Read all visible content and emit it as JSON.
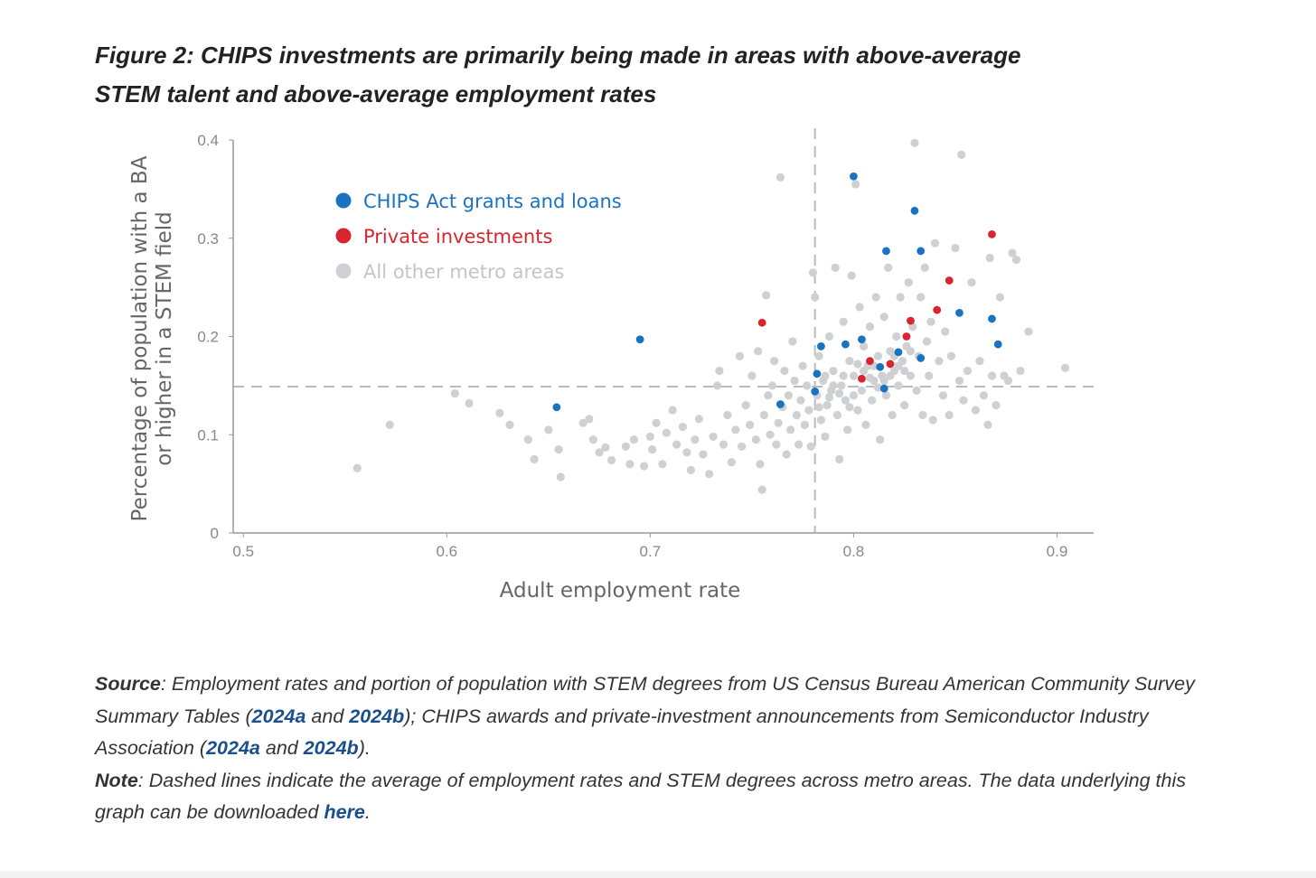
{
  "title_lines": [
    "Figure 2: CHIPS investments are primarily being made in areas with above-average",
    "STEM talent and above-average employment rates"
  ],
  "chart_data": {
    "type": "scatter",
    "title": "Figure 2: CHIPS investments are primarily being made in areas with above-average STEM talent and above-average employment rates",
    "xlabel": "Adult employment rate",
    "ylabel_lines": [
      "Percentage of population with a BA",
      "or higher in a STEM field"
    ],
    "xlim": [
      0.495,
      0.918
    ],
    "ylim": [
      0,
      0.4
    ],
    "x_ticks": [
      "0.5",
      "0.6",
      "0.7",
      "0.8",
      "0.9"
    ],
    "x_tick_values": [
      0.5,
      0.6,
      0.7,
      0.8,
      0.9
    ],
    "y_ticks": [
      "0",
      "0.1",
      "0.2",
      "0.3",
      "0.4"
    ],
    "y_tick_values": [
      0,
      0.1,
      0.2,
      0.3,
      0.4
    ],
    "grid": false,
    "legend_position": "top-left",
    "reference_lines": {
      "x_mean": 0.781,
      "y_mean": 0.149,
      "style": "dashed"
    },
    "series": [
      {
        "name": "All other metro areas",
        "color": "#cfd0d4",
        "points": [
          [
            0.556,
            0.066
          ],
          [
            0.572,
            0.11
          ],
          [
            0.604,
            0.142
          ],
          [
            0.611,
            0.132
          ],
          [
            0.626,
            0.122
          ],
          [
            0.631,
            0.11
          ],
          [
            0.64,
            0.095
          ],
          [
            0.643,
            0.075
          ],
          [
            0.65,
            0.105
          ],
          [
            0.655,
            0.085
          ],
          [
            0.656,
            0.057
          ],
          [
            0.667,
            0.112
          ],
          [
            0.67,
            0.116
          ],
          [
            0.672,
            0.095
          ],
          [
            0.675,
            0.082
          ],
          [
            0.678,
            0.087
          ],
          [
            0.681,
            0.074
          ],
          [
            0.688,
            0.088
          ],
          [
            0.69,
            0.07
          ],
          [
            0.692,
            0.095
          ],
          [
            0.697,
            0.068
          ],
          [
            0.7,
            0.098
          ],
          [
            0.701,
            0.085
          ],
          [
            0.703,
            0.112
          ],
          [
            0.706,
            0.07
          ],
          [
            0.708,
            0.102
          ],
          [
            0.711,
            0.125
          ],
          [
            0.713,
            0.09
          ],
          [
            0.716,
            0.108
          ],
          [
            0.718,
            0.082
          ],
          [
            0.72,
            0.064
          ],
          [
            0.722,
            0.095
          ],
          [
            0.724,
            0.116
          ],
          [
            0.726,
            0.08
          ],
          [
            0.729,
            0.06
          ],
          [
            0.731,
            0.098
          ],
          [
            0.733,
            0.15
          ],
          [
            0.734,
            0.165
          ],
          [
            0.736,
            0.09
          ],
          [
            0.738,
            0.12
          ],
          [
            0.74,
            0.072
          ],
          [
            0.742,
            0.105
          ],
          [
            0.744,
            0.18
          ],
          [
            0.745,
            0.088
          ],
          [
            0.747,
            0.13
          ],
          [
            0.749,
            0.11
          ],
          [
            0.75,
            0.16
          ],
          [
            0.752,
            0.095
          ],
          [
            0.753,
            0.185
          ],
          [
            0.754,
            0.07
          ],
          [
            0.755,
            0.044
          ],
          [
            0.756,
            0.12
          ],
          [
            0.757,
            0.242
          ],
          [
            0.758,
            0.14
          ],
          [
            0.759,
            0.1
          ],
          [
            0.76,
            0.15
          ],
          [
            0.761,
            0.175
          ],
          [
            0.762,
            0.09
          ],
          [
            0.763,
            0.112
          ],
          [
            0.764,
            0.362
          ],
          [
            0.765,
            0.128
          ],
          [
            0.766,
            0.165
          ],
          [
            0.767,
            0.08
          ],
          [
            0.768,
            0.14
          ],
          [
            0.769,
            0.105
          ],
          [
            0.77,
            0.195
          ],
          [
            0.771,
            0.155
          ],
          [
            0.772,
            0.12
          ],
          [
            0.773,
            0.09
          ],
          [
            0.774,
            0.135
          ],
          [
            0.775,
            0.17
          ],
          [
            0.776,
            0.11
          ],
          [
            0.777,
            0.15
          ],
          [
            0.778,
            0.125
          ],
          [
            0.779,
            0.088
          ],
          [
            0.78,
            0.265
          ],
          [
            0.781,
            0.24
          ],
          [
            0.782,
            0.14
          ],
          [
            0.783,
            0.18
          ],
          [
            0.784,
            0.115
          ],
          [
            0.785,
            0.155
          ],
          [
            0.786,
            0.098
          ],
          [
            0.787,
            0.13
          ],
          [
            0.788,
            0.2
          ],
          [
            0.789,
            0.145
          ],
          [
            0.79,
            0.165
          ],
          [
            0.791,
            0.27
          ],
          [
            0.792,
            0.12
          ],
          [
            0.793,
            0.075
          ],
          [
            0.794,
            0.15
          ],
          [
            0.795,
            0.215
          ],
          [
            0.796,
            0.135
          ],
          [
            0.797,
            0.105
          ],
          [
            0.798,
            0.175
          ],
          [
            0.799,
            0.262
          ],
          [
            0.8,
            0.16
          ],
          [
            0.801,
            0.355
          ],
          [
            0.802,
            0.125
          ],
          [
            0.803,
            0.23
          ],
          [
            0.804,
            0.145
          ],
          [
            0.805,
            0.19
          ],
          [
            0.806,
            0.11
          ],
          [
            0.807,
            0.17
          ],
          [
            0.808,
            0.21
          ],
          [
            0.809,
            0.135
          ],
          [
            0.81,
            0.155
          ],
          [
            0.811,
            0.24
          ],
          [
            0.812,
            0.18
          ],
          [
            0.813,
            0.095
          ],
          [
            0.814,
            0.16
          ],
          [
            0.815,
            0.22
          ],
          [
            0.816,
            0.14
          ],
          [
            0.817,
            0.27
          ],
          [
            0.818,
            0.185
          ],
          [
            0.819,
            0.12
          ],
          [
            0.82,
            0.165
          ],
          [
            0.821,
            0.2
          ],
          [
            0.822,
            0.15
          ],
          [
            0.823,
            0.24
          ],
          [
            0.824,
            0.175
          ],
          [
            0.825,
            0.13
          ],
          [
            0.826,
            0.19
          ],
          [
            0.827,
            0.255
          ],
          [
            0.828,
            0.16
          ],
          [
            0.829,
            0.21
          ],
          [
            0.83,
            0.397
          ],
          [
            0.831,
            0.145
          ],
          [
            0.832,
            0.18
          ],
          [
            0.833,
            0.24
          ],
          [
            0.834,
            0.12
          ],
          [
            0.835,
            0.27
          ],
          [
            0.836,
            0.195
          ],
          [
            0.837,
            0.16
          ],
          [
            0.838,
            0.215
          ],
          [
            0.839,
            0.115
          ],
          [
            0.84,
            0.295
          ],
          [
            0.842,
            0.175
          ],
          [
            0.844,
            0.14
          ],
          [
            0.845,
            0.205
          ],
          [
            0.847,
            0.12
          ],
          [
            0.848,
            0.18
          ],
          [
            0.85,
            0.29
          ],
          [
            0.852,
            0.155
          ],
          [
            0.853,
            0.385
          ],
          [
            0.854,
            0.135
          ],
          [
            0.856,
            0.165
          ],
          [
            0.858,
            0.255
          ],
          [
            0.86,
            0.125
          ],
          [
            0.862,
            0.175
          ],
          [
            0.864,
            0.14
          ],
          [
            0.866,
            0.11
          ],
          [
            0.867,
            0.28
          ],
          [
            0.868,
            0.16
          ],
          [
            0.87,
            0.13
          ],
          [
            0.872,
            0.24
          ],
          [
            0.874,
            0.16
          ],
          [
            0.876,
            0.155
          ],
          [
            0.878,
            0.285
          ],
          [
            0.88,
            0.278
          ],
          [
            0.882,
            0.165
          ],
          [
            0.886,
            0.205
          ],
          [
            0.904,
            0.168
          ],
          [
            0.79,
            0.15
          ],
          [
            0.795,
            0.16
          ],
          [
            0.8,
            0.14
          ],
          [
            0.805,
            0.165
          ],
          [
            0.81,
            0.17
          ],
          [
            0.815,
            0.155
          ],
          [
            0.82,
            0.18
          ],
          [
            0.825,
            0.165
          ],
          [
            0.798,
            0.128
          ],
          [
            0.788,
            0.138
          ],
          [
            0.783,
            0.128
          ],
          [
            0.812,
            0.148
          ],
          [
            0.818,
            0.16
          ],
          [
            0.808,
            0.158
          ],
          [
            0.793,
            0.142
          ],
          [
            0.786,
            0.16
          ],
          [
            0.802,
            0.172
          ],
          [
            0.822,
            0.17
          ],
          [
            0.828,
            0.185
          ]
        ]
      },
      {
        "name": "CHIPS Act grants and loans",
        "color": "#1a73c0",
        "points": [
          [
            0.8,
            0.363
          ],
          [
            0.83,
            0.328
          ],
          [
            0.816,
            0.287
          ],
          [
            0.833,
            0.287
          ],
          [
            0.852,
            0.224
          ],
          [
            0.868,
            0.218
          ],
          [
            0.871,
            0.192
          ],
          [
            0.695,
            0.197
          ],
          [
            0.654,
            0.128
          ],
          [
            0.764,
            0.131
          ],
          [
            0.782,
            0.162
          ],
          [
            0.781,
            0.144
          ],
          [
            0.784,
            0.19
          ],
          [
            0.796,
            0.192
          ],
          [
            0.804,
            0.197
          ],
          [
            0.813,
            0.169
          ],
          [
            0.822,
            0.184
          ],
          [
            0.815,
            0.147
          ],
          [
            0.833,
            0.178
          ]
        ]
      },
      {
        "name": "Private investments",
        "color": "#d9262e",
        "points": [
          [
            0.755,
            0.214
          ],
          [
            0.868,
            0.304
          ],
          [
            0.847,
            0.257
          ],
          [
            0.841,
            0.227
          ],
          [
            0.828,
            0.216
          ],
          [
            0.826,
            0.2
          ],
          [
            0.808,
            0.175
          ],
          [
            0.818,
            0.172
          ],
          [
            0.804,
            0.157
          ]
        ]
      }
    ],
    "legend": [
      "CHIPS Act grants and loans",
      "Private investments",
      "All other metro areas"
    ]
  },
  "footer": {
    "source_label": "Source",
    "source_text_1": ": Employment rates and portion of population with STEM degrees from US Census Bureau American Community Survey Summary Tables (",
    "link_1": "2024a",
    "and_1": " and ",
    "link_2": "2024b",
    "source_text_2": "); CHIPS awards and private-investment announcements from Semiconductor Industry Association (",
    "link_3": "2024a",
    "and_2": " and ",
    "link_4": "2024b",
    "source_text_3": ").",
    "note_label": "Note",
    "note_text": ": Dashed lines indicate the average of employment rates and STEM degrees across metro areas. The data underlying this graph can be downloaded ",
    "link_here": "here",
    "note_end": "."
  }
}
